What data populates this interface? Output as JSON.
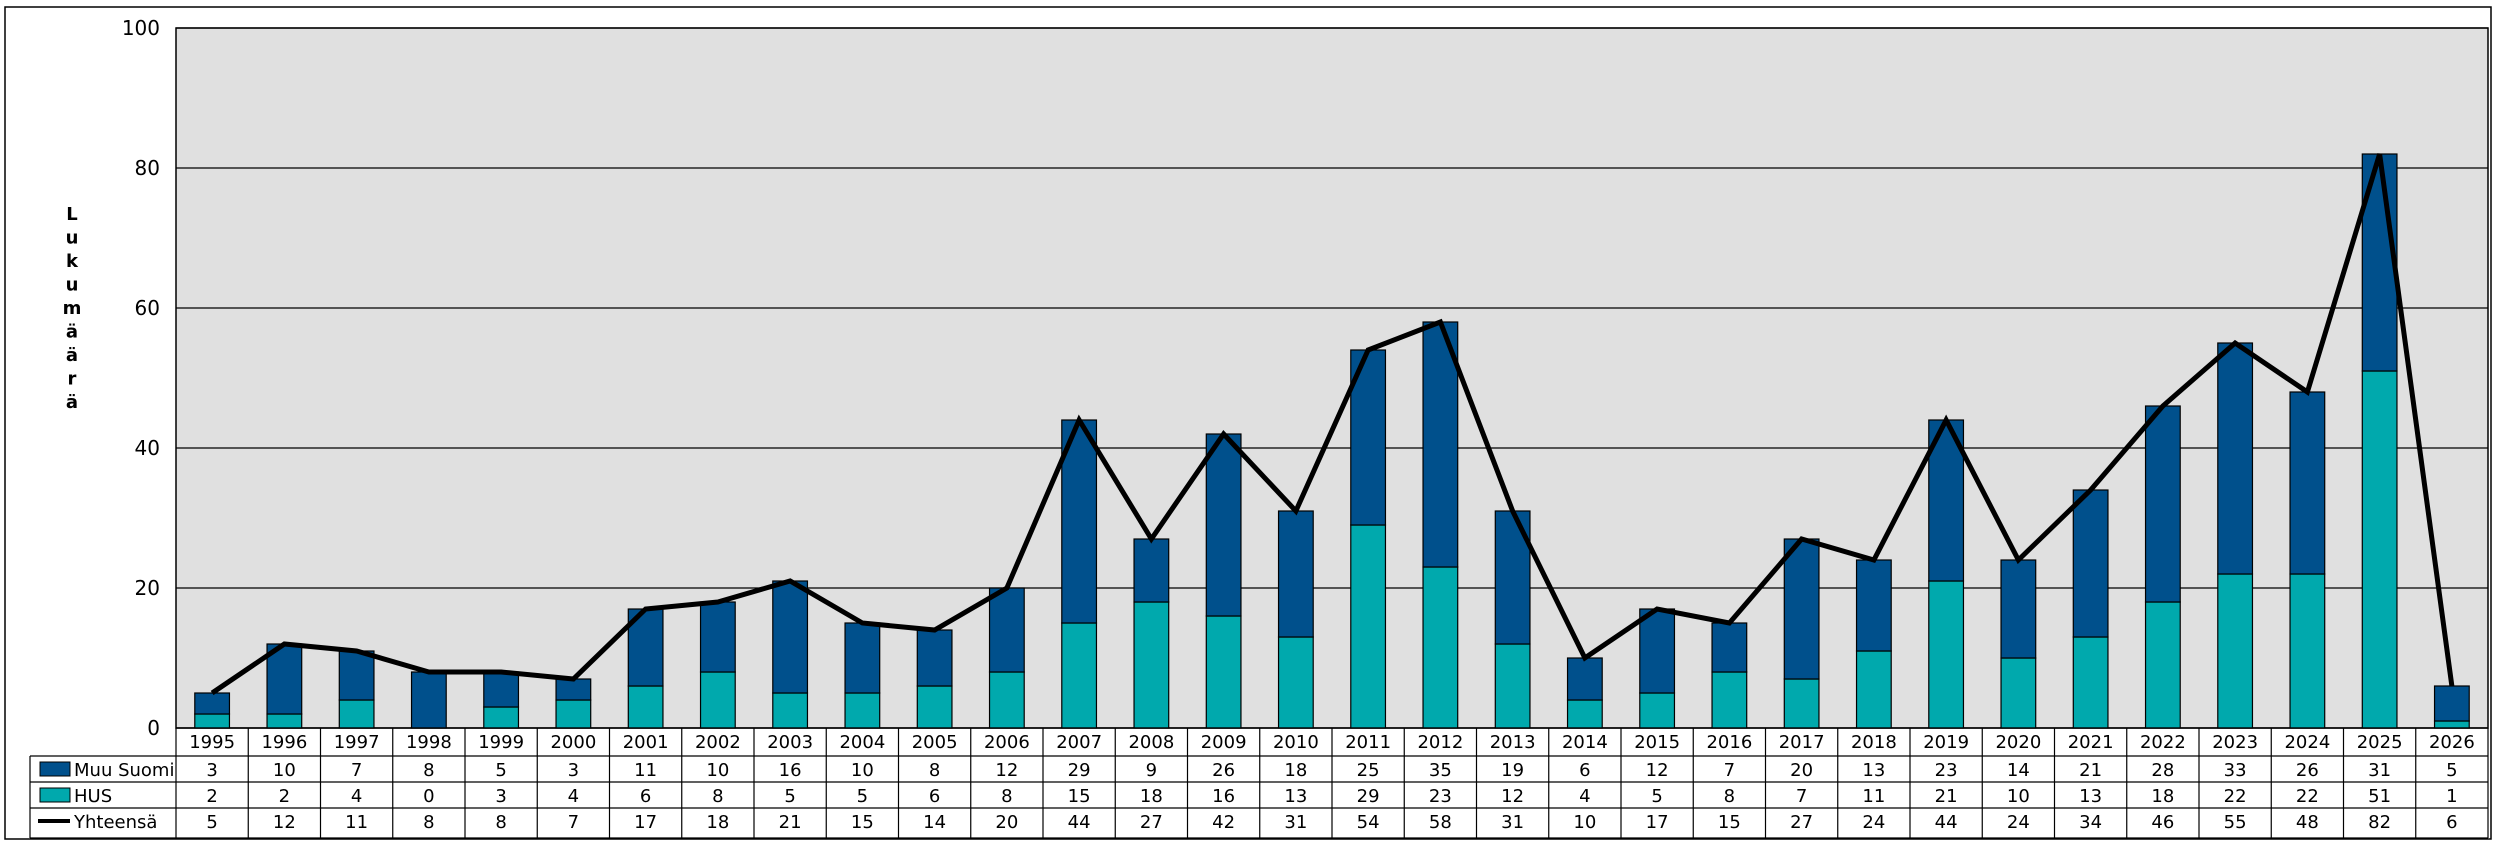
{
  "chart_data": {
    "type": "bar",
    "stacked": true,
    "ylabel": "Lukumäärä",
    "ylim": [
      0,
      100
    ],
    "yticks": [
      0,
      20,
      40,
      60,
      80,
      100
    ],
    "grid": true,
    "categories": [
      "1995",
      "1996",
      "1997",
      "1998",
      "1999",
      "2000",
      "2001",
      "2002",
      "2003",
      "2004",
      "2005",
      "2006",
      "2007",
      "2008",
      "2009",
      "2010",
      "2011",
      "2012",
      "2013",
      "2014",
      "2015",
      "2016",
      "2017",
      "2018",
      "2019",
      "2020",
      "2021",
      "2022",
      "2023",
      "2024",
      "2025",
      "2026"
    ],
    "series": [
      {
        "name": "Muu Suomi",
        "type": "bar",
        "color": "#00508C",
        "values": [
          3,
          10,
          7,
          8,
          5,
          3,
          11,
          10,
          16,
          10,
          8,
          12,
          29,
          9,
          26,
          18,
          25,
          35,
          19,
          6,
          12,
          7,
          20,
          13,
          23,
          14,
          21,
          28,
          33,
          26,
          31,
          5
        ]
      },
      {
        "name": "HUS",
        "type": "bar",
        "color": "#00A9AD",
        "values": [
          2,
          2,
          4,
          0,
          3,
          4,
          6,
          8,
          5,
          5,
          6,
          8,
          15,
          18,
          16,
          13,
          29,
          23,
          12,
          4,
          5,
          8,
          7,
          11,
          21,
          10,
          13,
          18,
          22,
          22,
          51,
          1
        ]
      },
      {
        "name": "Yhteensä",
        "type": "line",
        "color": "#000000",
        "values": [
          5,
          12,
          11,
          8,
          8,
          7,
          17,
          18,
          21,
          15,
          14,
          20,
          44,
          27,
          42,
          31,
          54,
          58,
          31,
          10,
          17,
          15,
          27,
          24,
          44,
          24,
          34,
          46,
          55,
          48,
          82,
          6
        ]
      }
    ],
    "table_rows": [
      "Muu Suomi",
      "HUS",
      "Yhteensä"
    ],
    "plot_background": "#E0E0E0"
  }
}
